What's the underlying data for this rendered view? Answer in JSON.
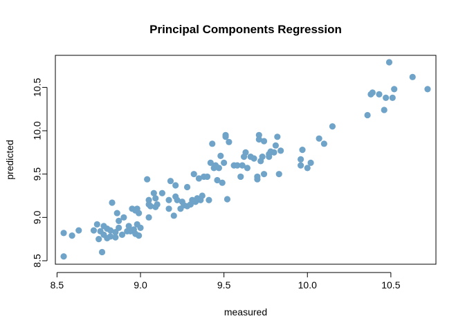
{
  "chart_data": {
    "type": "scatter",
    "title": "Principal Components Regression",
    "xlabel": "measured",
    "ylabel": "predicted",
    "xlim": [
      8.49,
      10.77
    ],
    "ylim": [
      8.46,
      10.87
    ],
    "x_ticks": [
      {
        "value": 8.5,
        "label": "8.5"
      },
      {
        "value": 9.0,
        "label": "9.0"
      },
      {
        "value": 9.5,
        "label": "9.5"
      },
      {
        "value": 10.0,
        "label": "10.0"
      },
      {
        "value": 10.5,
        "label": "10.5"
      }
    ],
    "y_ticks": [
      {
        "value": 8.5,
        "label": "8.5"
      },
      {
        "value": 9.0,
        "label": "9.0"
      },
      {
        "value": 9.5,
        "label": "9.5"
      },
      {
        "value": 10.0,
        "label": "10.0"
      },
      {
        "value": 10.5,
        "label": "10.5"
      }
    ],
    "grid": false,
    "point_color": "#6fa3c8",
    "points": [
      [
        8.54,
        8.55
      ],
      [
        8.54,
        8.82
      ],
      [
        8.59,
        8.79
      ],
      [
        8.63,
        8.85
      ],
      [
        8.72,
        8.85
      ],
      [
        8.74,
        8.92
      ],
      [
        8.75,
        8.75
      ],
      [
        8.76,
        8.84
      ],
      [
        8.77,
        8.6
      ],
      [
        8.78,
        8.8
      ],
      [
        8.78,
        8.9
      ],
      [
        8.8,
        8.76
      ],
      [
        8.8,
        8.87
      ],
      [
        8.82,
        8.78
      ],
      [
        8.82,
        8.85
      ],
      [
        8.83,
        9.17
      ],
      [
        8.85,
        8.77
      ],
      [
        8.85,
        8.83
      ],
      [
        8.86,
        9.05
      ],
      [
        8.87,
        8.88
      ],
      [
        8.87,
        8.96
      ],
      [
        8.89,
        8.8
      ],
      [
        8.9,
        9.0
      ],
      [
        8.92,
        8.84
      ],
      [
        8.93,
        8.9
      ],
      [
        8.94,
        8.84
      ],
      [
        8.95,
        9.1
      ],
      [
        8.96,
        8.86
      ],
      [
        8.97,
        8.81
      ],
      [
        8.97,
        9.08
      ],
      [
        8.98,
        9.1
      ],
      [
        8.98,
        8.92
      ],
      [
        8.99,
        8.79
      ],
      [
        8.99,
        9.05
      ],
      [
        9.0,
        8.88
      ],
      [
        9.04,
        9.44
      ],
      [
        9.05,
        9.0
      ],
      [
        9.05,
        9.2
      ],
      [
        9.05,
        9.15
      ],
      [
        9.06,
        9.13
      ],
      [
        9.08,
        9.28
      ],
      [
        9.09,
        9.22
      ],
      [
        9.09,
        9.12
      ],
      [
        9.1,
        9.15
      ],
      [
        9.13,
        9.28
      ],
      [
        9.17,
        9.2
      ],
      [
        9.17,
        9.1
      ],
      [
        9.18,
        9.42
      ],
      [
        9.2,
        9.02
      ],
      [
        9.21,
        9.24
      ],
      [
        9.21,
        9.37
      ],
      [
        9.22,
        9.2
      ],
      [
        9.24,
        9.1
      ],
      [
        9.25,
        9.18
      ],
      [
        9.26,
        9.14
      ],
      [
        9.28,
        9.13
      ],
      [
        9.28,
        9.35
      ],
      [
        9.3,
        9.15
      ],
      [
        9.31,
        9.2
      ],
      [
        9.32,
        9.5
      ],
      [
        9.33,
        9.18
      ],
      [
        9.34,
        9.22
      ],
      [
        9.35,
        9.45
      ],
      [
        9.36,
        9.2
      ],
      [
        9.37,
        9.25
      ],
      [
        9.38,
        9.47
      ],
      [
        9.4,
        9.47
      ],
      [
        9.41,
        9.2
      ],
      [
        9.42,
        9.63
      ],
      [
        9.43,
        9.85
      ],
      [
        9.44,
        9.57
      ],
      [
        9.45,
        9.6
      ],
      [
        9.46,
        9.43
      ],
      [
        9.47,
        9.57
      ],
      [
        9.48,
        9.71
      ],
      [
        9.49,
        9.4
      ],
      [
        9.5,
        9.63
      ],
      [
        9.51,
        9.95
      ],
      [
        9.51,
        9.93
      ],
      [
        9.52,
        9.21
      ],
      [
        9.53,
        9.87
      ],
      [
        9.56,
        9.6
      ],
      [
        9.58,
        9.6
      ],
      [
        9.6,
        9.47
      ],
      [
        9.61,
        9.6
      ],
      [
        9.62,
        9.7
      ],
      [
        9.63,
        9.75
      ],
      [
        9.64,
        9.57
      ],
      [
        9.66,
        9.7
      ],
      [
        9.68,
        9.68
      ],
      [
        9.7,
        9.47
      ],
      [
        9.7,
        9.44
      ],
      [
        9.71,
        9.95
      ],
      [
        9.71,
        9.9
      ],
      [
        9.72,
        9.65
      ],
      [
        9.73,
        9.7
      ],
      [
        9.74,
        9.5
      ],
      [
        9.74,
        9.88
      ],
      [
        9.77,
        9.73
      ],
      [
        9.77,
        9.7
      ],
      [
        9.78,
        9.76
      ],
      [
        9.8,
        9.75
      ],
      [
        9.81,
        9.83
      ],
      [
        9.82,
        9.93
      ],
      [
        9.83,
        9.5
      ],
      [
        9.84,
        9.77
      ],
      [
        9.96,
        9.6
      ],
      [
        9.96,
        9.67
      ],
      [
        9.97,
        9.78
      ],
      [
        10.0,
        9.57
      ],
      [
        10.02,
        9.63
      ],
      [
        10.07,
        9.91
      ],
      [
        10.1,
        9.85
      ],
      [
        10.15,
        10.05
      ],
      [
        10.36,
        10.18
      ],
      [
        10.38,
        10.42
      ],
      [
        10.39,
        10.44
      ],
      [
        10.43,
        10.42
      ],
      [
        10.46,
        10.24
      ],
      [
        10.47,
        10.38
      ],
      [
        10.49,
        10.79
      ],
      [
        10.51,
        10.38
      ],
      [
        10.52,
        10.48
      ],
      [
        10.63,
        10.62
      ],
      [
        10.72,
        10.48
      ]
    ]
  }
}
